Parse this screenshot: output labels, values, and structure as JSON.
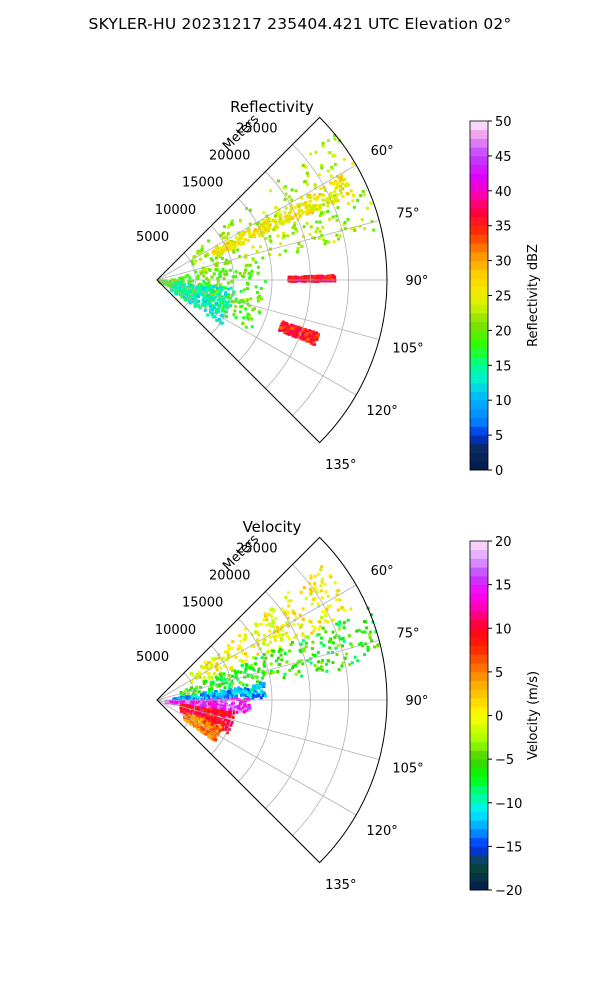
{
  "figure": {
    "suptitle": "SKYLER-HU  20231217  235404.421 UTC Elevation 02°"
  },
  "chart_data": [
    {
      "type": "heatmap",
      "subtype": "polar-radar-sector",
      "title": "Reflectivity",
      "radial_label": "Meters",
      "radial_ticks": [
        "5000",
        "10000",
        "15000",
        "20000",
        "25000"
      ],
      "radial_tick_values": [
        5000,
        10000,
        15000,
        20000,
        25000
      ],
      "angle_ticks": [
        "60°",
        "75°",
        "90°",
        "105°",
        "120°",
        "135°"
      ],
      "angle_tick_values": [
        60,
        75,
        90,
        105,
        120,
        135
      ],
      "theta_range_deg": [
        45,
        135
      ],
      "r_range_m": [
        0,
        30000
      ],
      "grid": true,
      "colorbar": {
        "label": "Reflectivity dBZ",
        "ticks": [
          "0",
          "5",
          "10",
          "15",
          "20",
          "25",
          "30",
          "35",
          "40",
          "45",
          "50"
        ],
        "range": [
          0,
          50
        ],
        "placement": "right"
      },
      "echoes": [
        {
          "az_range": [
            50,
            78
          ],
          "r_range": [
            5000,
            30000
          ],
          "dbz": 22,
          "desc": "broad band NE"
        },
        {
          "az_range": [
            60,
            66
          ],
          "r_range": [
            8000,
            28000
          ],
          "dbz": 26,
          "desc": "yellow streak"
        },
        {
          "az_range": [
            78,
            118
          ],
          "r_range": [
            0,
            14000
          ],
          "dbz": 19,
          "desc": "near-radar cluster"
        },
        {
          "az_range": [
            95,
            125
          ],
          "r_range": [
            2000,
            10000
          ],
          "dbz": 14,
          "desc": "cyan patch"
        },
        {
          "az_range": [
            88,
            90
          ],
          "r_range": [
            17000,
            23000
          ],
          "dbz": 36,
          "desc": "red line"
        },
        {
          "az_range": [
            108,
            112
          ],
          "r_range": [
            17000,
            22000
          ],
          "dbz": 35,
          "desc": "red cell"
        }
      ]
    },
    {
      "type": "heatmap",
      "subtype": "polar-radar-sector",
      "title": "Velocity",
      "radial_label": "Meters",
      "radial_ticks": [
        "5000",
        "10000",
        "15000",
        "20000",
        "25000"
      ],
      "radial_tick_values": [
        5000,
        10000,
        15000,
        20000,
        25000
      ],
      "angle_ticks": [
        "60°",
        "75°",
        "90°",
        "105°",
        "120°",
        "135°"
      ],
      "angle_tick_values": [
        60,
        75,
        90,
        105,
        120,
        135
      ],
      "theta_range_deg": [
        45,
        135
      ],
      "r_range_m": [
        0,
        30000
      ],
      "grid": true,
      "colorbar": {
        "label": "Velocity (m/s)",
        "ticks": [
          "−20",
          "−15",
          "−10",
          "−5",
          "0",
          "5",
          "10",
          "15",
          "20"
        ],
        "range": [
          -20,
          20
        ],
        "placement": "right"
      },
      "echoes": [
        {
          "az_range": [
            50,
            66
          ],
          "r_range": [
            5000,
            28000
          ],
          "vel": 0,
          "desc": "yellow band"
        },
        {
          "az_range": [
            66,
            80
          ],
          "r_range": [
            3000,
            30000
          ],
          "vel": -6,
          "desc": "green band"
        },
        {
          "az_range": [
            80,
            88
          ],
          "r_range": [
            2000,
            14000
          ],
          "vel": -12,
          "desc": "cyan band"
        },
        {
          "az_range": [
            88,
            98
          ],
          "r_range": [
            1000,
            12000
          ],
          "vel": 15,
          "desc": "magenta region"
        },
        {
          "az_range": [
            98,
            115
          ],
          "r_range": [
            3000,
            10000
          ],
          "vel": 10,
          "desc": "red region"
        },
        {
          "az_range": [
            112,
            125
          ],
          "r_range": [
            4000,
            9000
          ],
          "vel": 5,
          "desc": "orange region"
        }
      ]
    }
  ]
}
